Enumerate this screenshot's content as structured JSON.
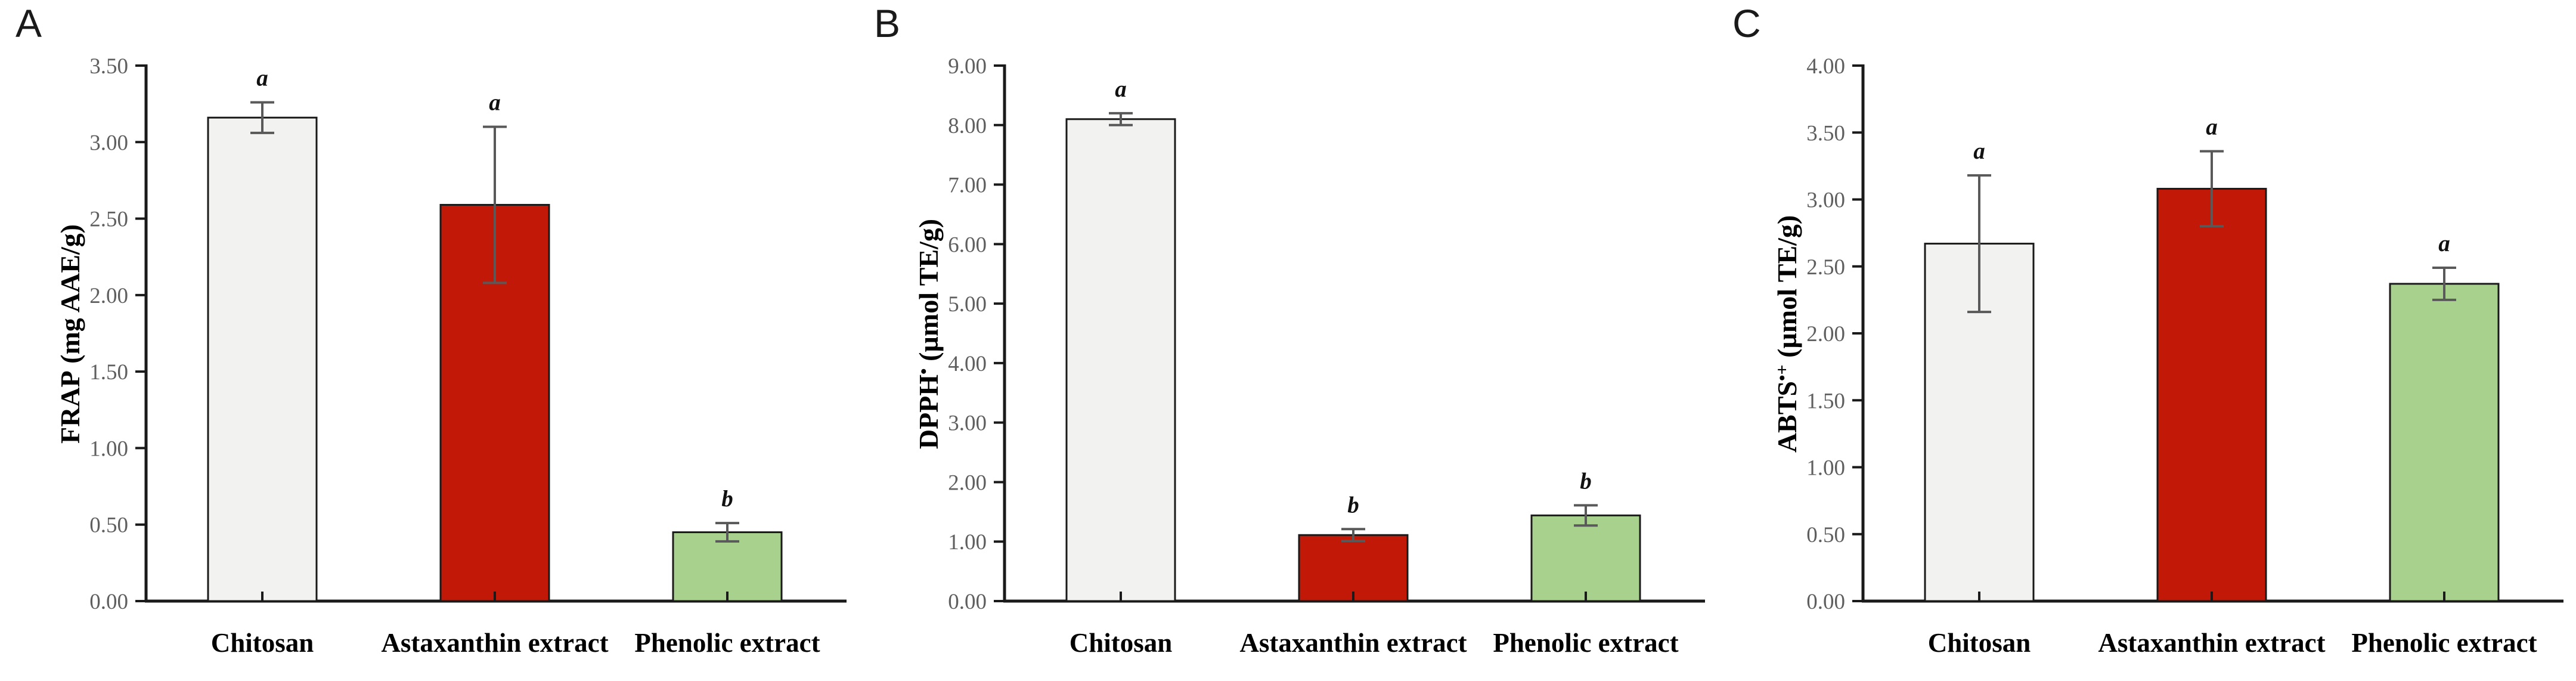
{
  "figure": {
    "background": "#ffffff",
    "colors": {
      "bar_border": "#1a1a1a",
      "axis_line": "#1a1a1a",
      "error_bar": "#595959",
      "tick_label": "#5f5f5f",
      "bar_chitosan": "#F2F2F0",
      "bar_astaxanthin": "#C21807",
      "bar_phenolic": "#A9D18E"
    }
  },
  "chart_data": [
    {
      "type": "bar",
      "panel_letter": "A",
      "ylabel": {
        "main": "FRAP",
        "sup": "",
        "unit": " (mg AAE/g)"
      },
      "xlabel": "",
      "ylim": [
        0,
        3.5
      ],
      "ystep": 0.5,
      "ytick_labels": [
        "0.00",
        "0.50",
        "1.00",
        "1.50",
        "2.00",
        "2.50",
        "3.00",
        "3.50"
      ],
      "categories": [
        "Chitosan",
        "Astaxanthin extract",
        "Phenolic extract"
      ],
      "values": [
        3.16,
        2.59,
        0.45
      ],
      "errors": [
        0.1,
        0.51,
        0.06
      ],
      "sig_letters": [
        "a",
        "a",
        "b"
      ],
      "bar_colors": [
        "#F2F2F0",
        "#C21807",
        "#A9D18E"
      ],
      "grid": false,
      "legend": "none"
    },
    {
      "type": "bar",
      "panel_letter": "B",
      "ylabel": {
        "main": "DPPH",
        "sup": "•",
        "unit": " (µmol TE/g)"
      },
      "xlabel": "",
      "ylim": [
        0,
        9
      ],
      "ystep": 1,
      "ytick_labels": [
        "0.00",
        "1.00",
        "2.00",
        "3.00",
        "4.00",
        "5.00",
        "6.00",
        "7.00",
        "8.00",
        "9.00"
      ],
      "categories": [
        "Chitosan",
        "Astaxanthin extract",
        "Phenolic extract"
      ],
      "values": [
        8.1,
        1.11,
        1.44
      ],
      "errors": [
        0.1,
        0.1,
        0.17
      ],
      "sig_letters": [
        "a",
        "b",
        "b"
      ],
      "bar_colors": [
        "#F2F2F0",
        "#C21807",
        "#A9D18E"
      ],
      "grid": false,
      "legend": "none"
    },
    {
      "type": "bar",
      "panel_letter": "C",
      "ylabel": {
        "main": "ABTS",
        "sup": "•+",
        "unit": " (µmol TE/g)"
      },
      "xlabel": "",
      "ylim": [
        0,
        4
      ],
      "ystep": 0.5,
      "ytick_labels": [
        "0.00",
        "0.50",
        "1.00",
        "1.50",
        "2.00",
        "2.50",
        "3.00",
        "3.50",
        "4.00"
      ],
      "categories": [
        "Chitosan",
        "Astaxanthin extract",
        "Phenolic extract"
      ],
      "values": [
        2.67,
        3.08,
        2.37
      ],
      "errors": [
        0.51,
        0.28,
        0.12
      ],
      "sig_letters": [
        "a",
        "a",
        "a"
      ],
      "bar_colors": [
        "#F2F2F0",
        "#C21807",
        "#A9D18E"
      ],
      "grid": false,
      "legend": "none"
    }
  ]
}
